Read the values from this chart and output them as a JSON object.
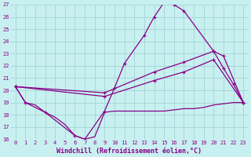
{
  "xlabel": "Windchill (Refroidissement éolien,°C)",
  "background_color": "#c8f0f0",
  "grid_color": "#a8d8d8",
  "line_color": "#880088",
  "xlim": [
    -0.5,
    23.5
  ],
  "ylim": [
    16,
    27
  ],
  "x_ticks": [
    0,
    1,
    2,
    3,
    4,
    5,
    6,
    7,
    8,
    9,
    10,
    11,
    12,
    13,
    14,
    15,
    16,
    17,
    18,
    19,
    20,
    21,
    22,
    23
  ],
  "y_ticks": [
    16,
    17,
    18,
    19,
    20,
    21,
    22,
    23,
    24,
    25,
    26,
    27
  ],
  "series": [
    {
      "x": [
        0,
        1,
        2,
        3,
        4,
        5,
        6,
        7,
        8,
        9,
        10,
        11,
        12,
        13,
        14,
        15,
        16,
        17,
        18,
        19,
        20,
        21,
        22,
        23
      ],
      "y": [
        20.3,
        19.0,
        18.8,
        18.2,
        17.8,
        17.2,
        16.3,
        16.0,
        16.2,
        18.2,
        18.3,
        18.3,
        18.3,
        18.3,
        18.3,
        18.3,
        18.4,
        18.5,
        18.5,
        18.6,
        18.8,
        18.9,
        19.0,
        19.0
      ],
      "marker": false,
      "lw": 0.9
    },
    {
      "x": [
        0,
        1,
        3,
        6,
        7,
        9,
        10,
        11,
        13,
        14,
        15,
        16,
        17,
        20,
        21,
        22,
        23
      ],
      "y": [
        20.3,
        19.0,
        18.2,
        16.3,
        16.0,
        18.3,
        20.2,
        22.2,
        24.5,
        26.0,
        27.2,
        27.0,
        26.5,
        23.2,
        21.8,
        20.5,
        19.0
      ],
      "marker": true,
      "lw": 0.9
    },
    {
      "x": [
        0,
        9,
        14,
        17,
        20,
        21,
        23
      ],
      "y": [
        20.3,
        19.8,
        21.5,
        22.3,
        23.2,
        22.8,
        19.0
      ],
      "marker": true,
      "lw": 0.9
    },
    {
      "x": [
        0,
        9,
        14,
        17,
        20,
        23
      ],
      "y": [
        20.3,
        19.5,
        20.8,
        21.5,
        22.5,
        19.0
      ],
      "marker": true,
      "lw": 0.9
    }
  ]
}
